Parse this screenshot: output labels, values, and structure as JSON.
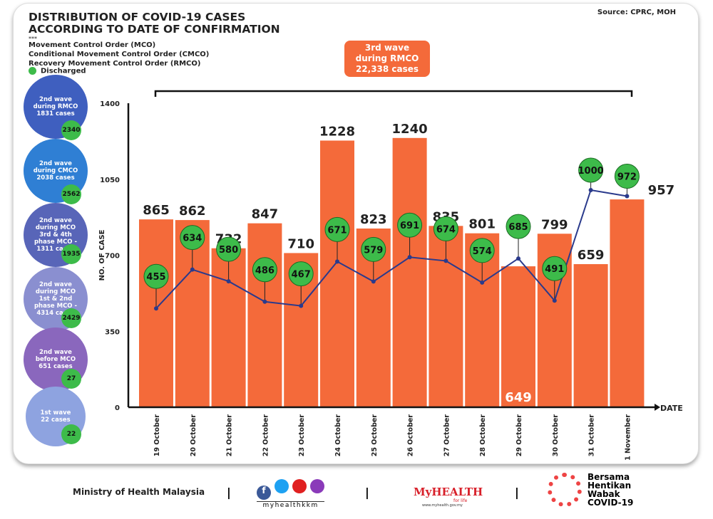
{
  "source": "Source: CPRC, MOH",
  "title_line1": "DISTRIBUTION OF COVID-19 CASES",
  "title_line2": "ACCORDING TO DATE OF CONFIRMATION",
  "stars": "***",
  "legend": [
    "Movement Control Order (MCO)",
    "Conditional Movement Control Order (CMCO)",
    "Recovery Movement Control Order (RMCO)"
  ],
  "discharged_label": "Discharged",
  "wave_box": {
    "line1": "3rd wave",
    "line2": "during RMCO",
    "line3": "22,338 cases"
  },
  "waves": [
    {
      "label": "2nd wave\nduring RMCO\n1831 cases",
      "discharged": "2340",
      "color": "#3f5fbf"
    },
    {
      "label": "2nd wave\nduring CMCO\n2038 cases",
      "discharged": "2562",
      "color": "#2f7fd4"
    },
    {
      "label": "2nd wave\nduring MCO\n3rd & 4th\nphase MCO -\n1311 cases",
      "discharged": "1935",
      "color": "#5865b8"
    },
    {
      "label": "2nd wave\nduring MCO\n1st & 2nd\nphase MCO -\n4314 cases",
      "discharged": "2429",
      "color": "#8a8fd0"
    },
    {
      "label": "2nd wave\nbefore MCO\n651 cases",
      "discharged": "27",
      "color": "#8a67bd"
    },
    {
      "label": "1st wave\n22 cases",
      "discharged": "22",
      "color": "#8ea3e0"
    }
  ],
  "colors": {
    "bar": "#f46a3a",
    "line": "#2a3a8c",
    "discharged": "#3dbb4a"
  },
  "chart_data": {
    "type": "bar",
    "ylabel": "NO. OF CASE",
    "xlabel": "DATE",
    "ylim": [
      0,
      1400
    ],
    "yticks": [
      0,
      350,
      700,
      1050,
      1400
    ],
    "categories": [
      "19 October",
      "20 October",
      "21 October",
      "22 October",
      "23 October",
      "24 October",
      "25 October",
      "26 October",
      "27 October",
      "28 October",
      "29 October",
      "30 October",
      "31 October",
      "1 November"
    ],
    "series": [
      {
        "type": "bar",
        "values": [
          865,
          862,
          732,
          847,
          710,
          1228,
          823,
          1240,
          835,
          801,
          649,
          799,
          659,
          957
        ]
      },
      {
        "type": "line",
        "name": "Discharged",
        "values": [
          455,
          634,
          580,
          486,
          467,
          671,
          579,
          691,
          674,
          574,
          685,
          491,
          1000,
          972
        ]
      }
    ]
  },
  "footer": {
    "ministry": "Ministry of Health Malaysia",
    "social": "myhealthkkm",
    "myhealth": "MyHEALTH",
    "myhealth_sub": "for life",
    "myhealth_url": "www.myhealth.gov.my",
    "campaign": [
      "Bersama",
      "Hentikan",
      "Wabak",
      "COVID-19"
    ],
    "sep": "|"
  }
}
